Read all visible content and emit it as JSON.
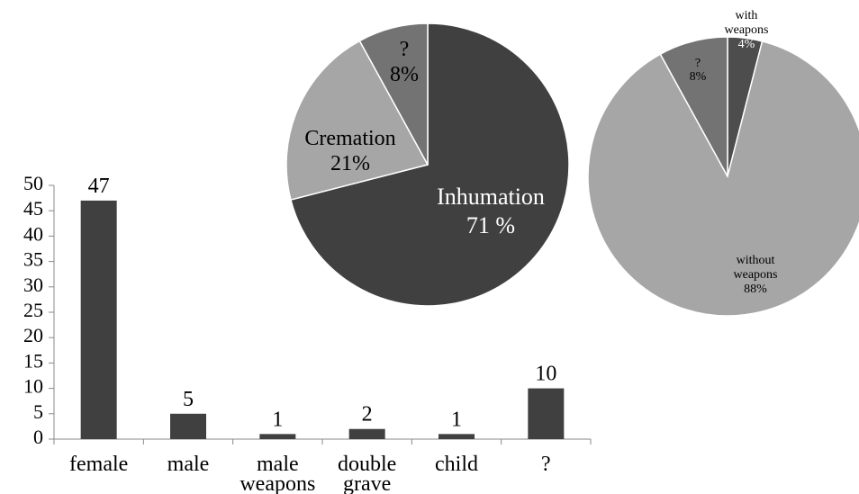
{
  "chart_data": [
    {
      "type": "bar",
      "categories": [
        [
          "female"
        ],
        [
          "male"
        ],
        [
          "male",
          "weapons"
        ],
        [
          "double",
          "grave"
        ],
        [
          "child"
        ],
        [
          "?"
        ]
      ],
      "values": [
        47,
        5,
        1,
        2,
        1,
        10
      ],
      "data_labels": [
        "47",
        "5",
        "1",
        "2",
        "1",
        "10"
      ],
      "ylim": [
        0,
        50
      ],
      "yticks": [
        0,
        5,
        10,
        15,
        20,
        25,
        30,
        35,
        40,
        45,
        50
      ],
      "grid": false,
      "legend": "none",
      "colors": {
        "bar": "#404040",
        "axis": "#888888",
        "text": "#000000"
      }
    },
    {
      "type": "pie",
      "slices": [
        {
          "label": [
            "Inhumation",
            "71 %"
          ],
          "value": 71,
          "color": "#404040",
          "text_color": "#ffffff"
        },
        {
          "label": [
            "Cremation",
            "21%"
          ],
          "value": 21,
          "color": "#a6a6a6",
          "text_color": "#000000"
        },
        {
          "label": [
            "?",
            "8%"
          ],
          "value": 8,
          "color": "#737373",
          "text_color": "#000000"
        }
      ],
      "start": "top-clockwise",
      "legend": "none"
    },
    {
      "type": "pie",
      "slices": [
        {
          "label": [
            "with",
            "weapons",
            "4%"
          ],
          "value": 4,
          "color": "#4d4d4d",
          "text_color": "#ffffff",
          "label_split": 2
        },
        {
          "label": [
            "without",
            "weapons",
            "88%"
          ],
          "value": 88,
          "color": "#a6a6a6",
          "text_color": "#000000"
        },
        {
          "label": [
            "?",
            "8%"
          ],
          "value": 8,
          "color": "#737373",
          "text_color": "#000000"
        }
      ],
      "start": "top-clockwise",
      "legend": "none"
    }
  ]
}
